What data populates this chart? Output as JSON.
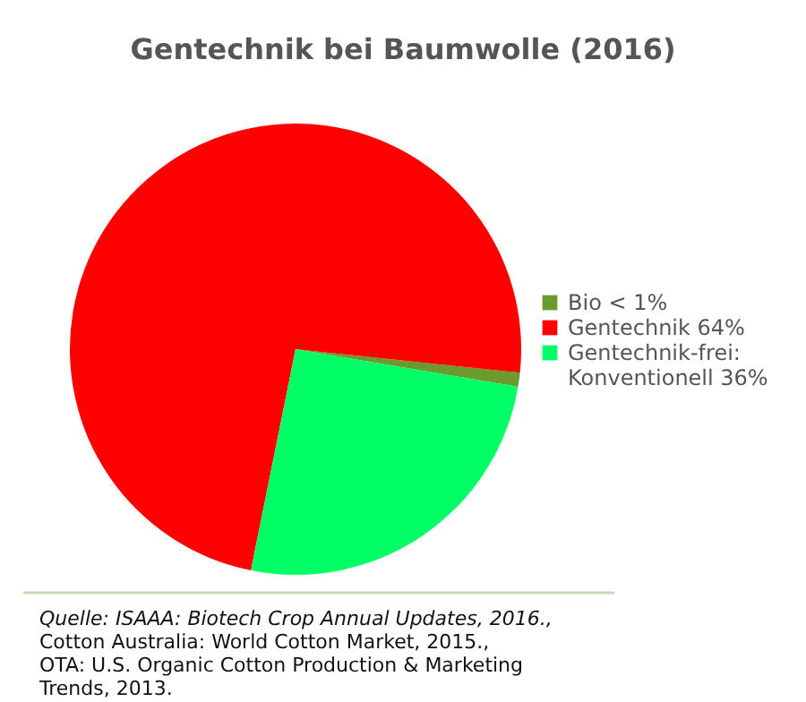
{
  "chart_data": {
    "type": "pie",
    "title": "Gentechnik bei Baumwolle (2016)",
    "categories": [
      "Bio < 1%",
      "Gentechnik 64%",
      "Gentechnik-frei: Konventionell 36%"
    ],
    "values": [
      1,
      73.5,
      25.5
    ],
    "colors": [
      "#6b9a2e",
      "#ff0000",
      "#00ff66"
    ],
    "legend": "right",
    "annotations": [
      "Quelle: ISAAA: Biotech Crop Annual Updates, 2016.,",
      "Cotton Australia: World Cotton Market, 2015.,",
      "OTA: U.S. Organic Cotton Production & Marketing",
      "Trends, 2013."
    ]
  }
}
